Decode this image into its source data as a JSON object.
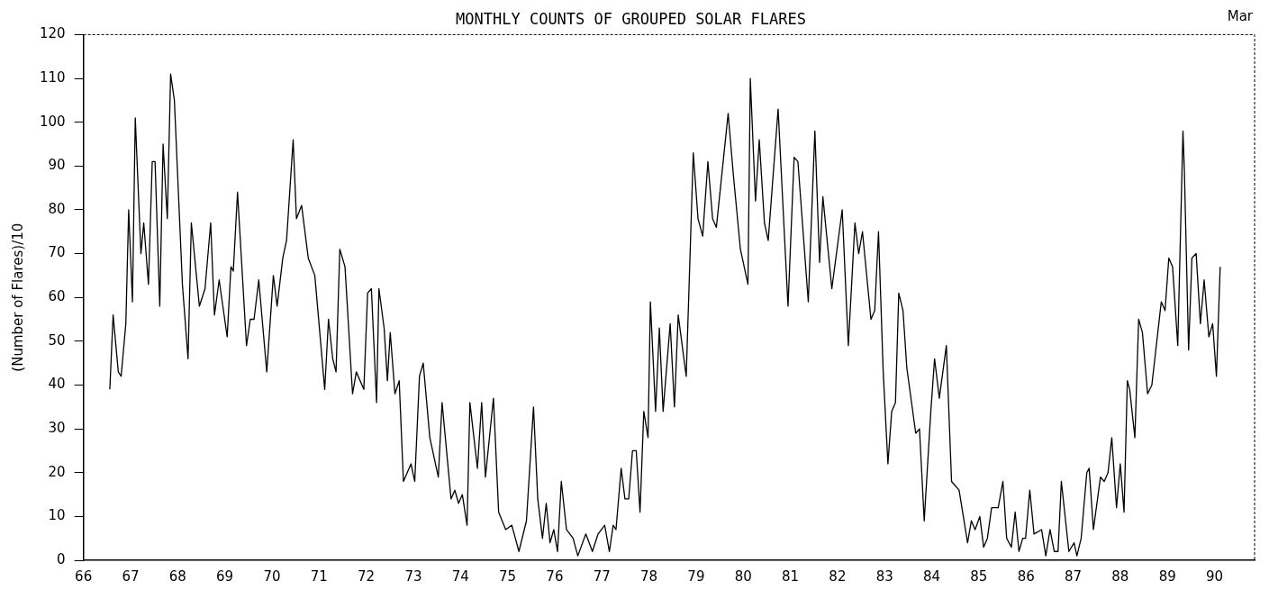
{
  "chart_data": {
    "type": "line",
    "title": "MONTHLY COUNTS OF GROUPED SOLAR FLARES",
    "ylabel": "(Number of Flares)/10",
    "annotations": [
      "Mar"
    ],
    "x": [
      66.56,
      66.63,
      66.74,
      66.8,
      66.9,
      66.96,
      67.04,
      67.1,
      67.22,
      67.28,
      67.38,
      67.46,
      67.52,
      67.62,
      67.69,
      67.78,
      67.85,
      67.93,
      68.1,
      68.22,
      68.29,
      68.46,
      68.58,
      68.7,
      68.78,
      68.88,
      69.05,
      69.13,
      69.18,
      69.27,
      69.46,
      69.54,
      69.62,
      69.72,
      69.89,
      70.03,
      70.11,
      70.23,
      70.31,
      70.45,
      70.52,
      70.63,
      70.77,
      70.91,
      71.12,
      71.2,
      71.29,
      71.36,
      71.44,
      71.55,
      71.71,
      71.79,
      71.95,
      72.03,
      72.11,
      72.22,
      72.27,
      72.38,
      72.45,
      72.51,
      72.61,
      72.7,
      72.79,
      72.95,
      73.03,
      73.13,
      73.21,
      73.35,
      73.53,
      73.61,
      73.8,
      73.88,
      73.96,
      74.04,
      74.14,
      74.2,
      74.36,
      74.45,
      74.53,
      74.7,
      74.81,
      74.96,
      75.09,
      75.24,
      75.4,
      75.55,
      75.64,
      75.74,
      75.82,
      75.9,
      75.98,
      76.06,
      76.14,
      76.25,
      76.39,
      76.49,
      76.66,
      76.8,
      76.92,
      77.06,
      77.16,
      77.24,
      77.3,
      77.41,
      77.49,
      77.57,
      77.65,
      77.73,
      77.81,
      77.89,
      77.98,
      78.03,
      78.14,
      78.22,
      78.3,
      78.45,
      78.54,
      78.62,
      78.79,
      78.94,
      79.04,
      79.14,
      79.25,
      79.35,
      79.43,
      79.68,
      79.79,
      79.94,
      80.1,
      80.15,
      80.26,
      80.34,
      80.45,
      80.53,
      80.74,
      80.95,
      81.08,
      81.16,
      81.38,
      81.52,
      81.62,
      81.69,
      81.88,
      82.1,
      82.23,
      82.37,
      82.45,
      82.53,
      82.71,
      82.79,
      82.87,
      82.97,
      83.07,
      83.15,
      83.23,
      83.3,
      83.39,
      83.47,
      83.66,
      83.74,
      83.84,
      83.98,
      84.06,
      84.16,
      84.31,
      84.42,
      84.58,
      84.76,
      84.84,
      84.92,
      85.02,
      85.1,
      85.18,
      85.27,
      85.41,
      85.51,
      85.59,
      85.69,
      85.77,
      85.85,
      85.93,
      85.99,
      86.08,
      86.17,
      86.33,
      86.42,
      86.51,
      86.6,
      86.68,
      86.75,
      86.91,
      87.02,
      87.08,
      87.17,
      87.29,
      87.34,
      87.43,
      87.58,
      87.66,
      87.74,
      87.82,
      87.92,
      88.0,
      88.08,
      88.15,
      88.2,
      88.31,
      88.39,
      88.47,
      88.58,
      88.67,
      88.87,
      88.95,
      89.03,
      89.11,
      89.22,
      89.33,
      89.36,
      89.45,
      89.52,
      89.61,
      89.7,
      89.78,
      89.88,
      89.96,
      90.04,
      90.12
    ],
    "values": [
      39,
      56,
      43,
      42,
      54,
      80,
      59,
      101,
      70,
      77,
      63,
      91,
      91,
      58,
      95,
      78,
      111,
      105,
      63,
      46,
      77,
      58,
      62,
      77,
      56,
      64,
      51,
      67,
      66,
      84,
      49,
      55,
      55,
      64,
      43,
      65,
      58,
      69,
      73,
      96,
      78,
      81,
      69,
      65,
      39,
      55,
      46,
      43,
      71,
      67,
      38,
      43,
      39,
      61,
      62,
      36,
      62,
      53,
      41,
      52,
      38,
      41,
      18,
      22,
      18,
      42,
      45,
      28,
      19,
      36,
      14,
      16,
      13,
      15,
      8,
      36,
      21,
      36,
      19,
      37,
      11,
      7,
      8,
      2,
      9,
      35,
      14,
      5,
      13,
      4,
      7,
      2,
      18,
      7,
      5,
      1,
      6,
      2,
      6,
      8,
      2,
      8,
      7,
      21,
      14,
      14,
      25,
      25,
      11,
      34,
      28,
      59,
      34,
      53,
      34,
      54,
      35,
      56,
      42,
      93,
      78,
      74,
      91,
      78,
      76,
      102,
      88,
      71,
      63,
      110,
      82,
      96,
      77,
      73,
      103,
      58,
      92,
      91,
      59,
      98,
      68,
      83,
      62,
      80,
      49,
      77,
      70,
      75,
      55,
      57,
      75,
      43,
      22,
      34,
      36,
      61,
      57,
      44,
      29,
      30,
      9,
      34,
      46,
      37,
      49,
      18,
      16,
      4,
      9,
      7,
      10,
      3,
      5,
      12,
      12,
      18,
      5,
      3,
      11,
      2,
      5,
      5,
      16,
      6,
      7,
      1,
      7,
      2,
      2,
      18,
      2,
      4,
      1,
      5,
      20,
      21,
      7,
      19,
      18,
      20,
      28,
      12,
      22,
      11,
      41,
      39,
      28,
      55,
      52,
      38,
      40,
      59,
      57,
      69,
      67,
      49,
      98,
      89,
      48,
      69,
      70,
      54,
      64,
      51,
      54,
      42,
      67
    ],
    "color": "#000000",
    "xlim": [
      66,
      90.85
    ],
    "xticks": [
      66,
      67,
      68,
      69,
      70,
      71,
      72,
      73,
      74,
      75,
      76,
      77,
      78,
      79,
      80,
      81,
      82,
      83,
      84,
      85,
      86,
      87,
      88,
      89,
      90
    ],
    "ylim": [
      0,
      120
    ],
    "yticks": [
      0,
      10,
      20,
      30,
      40,
      50,
      60,
      70,
      80,
      90,
      100,
      110,
      120
    ],
    "grid": false,
    "legend": false,
    "marker": "none",
    "line_style": "solid"
  }
}
